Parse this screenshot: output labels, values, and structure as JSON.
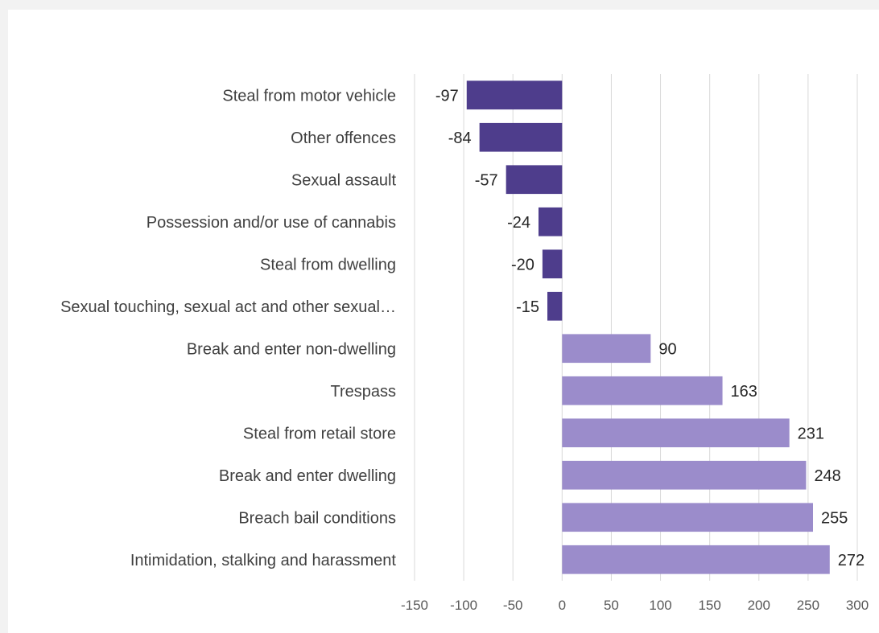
{
  "chart_data": {
    "type": "bar",
    "orientation": "horizontal",
    "categories": [
      "Steal from motor vehicle",
      "Other offences",
      "Sexual assault",
      "Possession and/or use of cannabis",
      "Steal from dwelling",
      "Sexual touching, sexual act and other sexual…",
      "Break and enter non-dwelling",
      "Trespass",
      "Steal from retail store",
      "Break and enter dwelling",
      "Breach bail conditions",
      "Intimidation, stalking and harassment"
    ],
    "values": [
      -97,
      -84,
      -57,
      -24,
      -20,
      -15,
      90,
      163,
      231,
      248,
      255,
      272
    ],
    "xlim": [
      -150,
      300
    ],
    "xticks": [
      -150,
      -100,
      -50,
      0,
      50,
      100,
      150,
      200,
      250,
      300
    ],
    "grid": true,
    "legend": "none",
    "colors": {
      "negative": "#4e3d8c",
      "positive": "#9b8ccb",
      "grid": "#d9d9d9"
    }
  }
}
